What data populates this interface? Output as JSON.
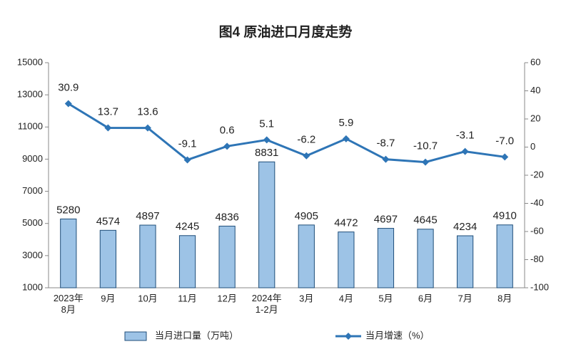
{
  "chart_data": {
    "type": "bar_line",
    "title": "图4 原油进口月度走势",
    "categories": [
      "2023年\n8月",
      "9月",
      "10月",
      "11月",
      "12月",
      "2024年\n1-2月",
      "3月",
      "4月",
      "5月",
      "6月",
      "7月",
      "8月"
    ],
    "series": [
      {
        "name": "当月进口量（万吨）",
        "type": "bar",
        "color": "#9dc3e6",
        "values": [
          5280,
          4574,
          4897,
          4245,
          4836,
          8831,
          4905,
          4472,
          4697,
          4645,
          4234,
          4910
        ]
      },
      {
        "name": "当月增速（%）",
        "type": "line",
        "axis": "y2",
        "color": "#2e75b6",
        "values": [
          30.9,
          13.7,
          13.6,
          -9.1,
          0.6,
          5.1,
          -6.2,
          5.9,
          -8.7,
          -10.7,
          -3.1,
          -7.0
        ],
        "value_labels": [
          "30.9",
          "13.7",
          "13.6",
          "-9.1",
          "0.6",
          "5.1",
          "-6.2",
          "5.9",
          "-8.7",
          "-10.7",
          "-3.1",
          "-7.0"
        ]
      }
    ],
    "ylim": [
      1000,
      15000
    ],
    "yticks": [
      1000,
      3000,
      5000,
      7000,
      9000,
      11000,
      13000,
      15000
    ],
    "y2lim": [
      -100,
      60
    ],
    "y2ticks": [
      -100,
      -80,
      -60,
      -40,
      -20,
      0,
      20,
      40,
      60
    ],
    "grid": false,
    "legend": "bottom"
  }
}
